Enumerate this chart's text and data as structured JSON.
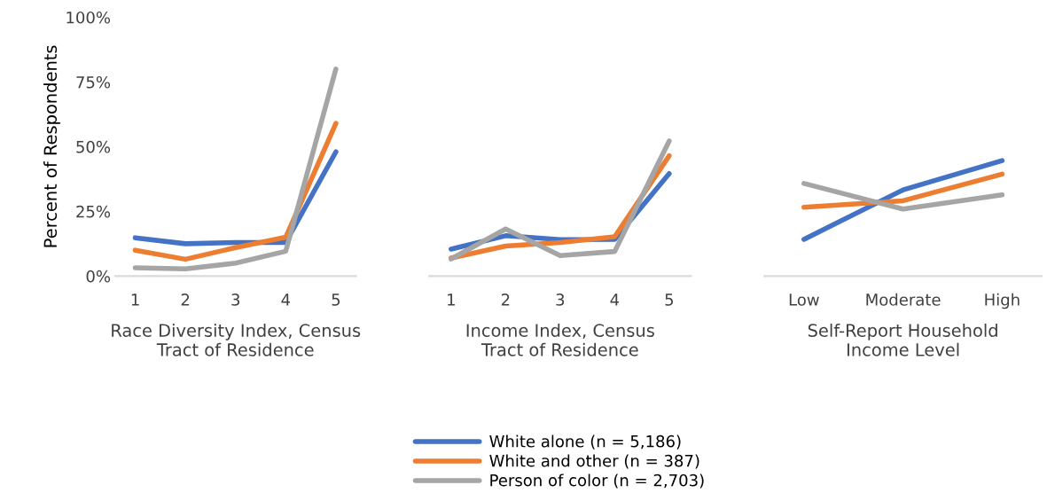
{
  "chart_data": [
    {
      "type": "line",
      "ylabel": "Percent of Respondents",
      "xlabel": "Race Diversity Index, Census\nTract of Residence",
      "categories": [
        "1",
        "2",
        "3",
        "4",
        "5"
      ],
      "ylim": [
        0,
        100
      ],
      "yticks": [
        {
          "value": 0,
          "label": "0%"
        },
        {
          "value": 25,
          "label": "25%"
        },
        {
          "value": 50,
          "label": "50%"
        },
        {
          "value": 75,
          "label": "75%"
        },
        {
          "value": 100,
          "label": "100%"
        }
      ],
      "grid": false,
      "series": [
        {
          "color": "#4472c4",
          "values": [
            14.8,
            12.5,
            13,
            13,
            48
          ]
        },
        {
          "color": "#ed7d31",
          "values": [
            10,
            6.5,
            11,
            15,
            59
          ]
        },
        {
          "color": "#a5a5a5",
          "values": [
            3.2,
            2.8,
            5,
            9.6,
            80
          ]
        }
      ]
    },
    {
      "type": "line",
      "xlabel": "Income Index, Census\nTract of Residence",
      "categories": [
        "1",
        "2",
        "3",
        "4",
        "5"
      ],
      "ylim": [
        0,
        100
      ],
      "tick_labels": "x",
      "grid": false,
      "legend": "bottom",
      "series": [
        {
          "name": "White alone (n = 5,186)",
          "color": "#4472c4",
          "values": [
            10.4,
            15.6,
            14.1,
            14.2,
            39.6
          ]
        },
        {
          "name": "White and other (n = 387)",
          "color": "#ed7d31",
          "values": [
            7,
            11.6,
            13,
            15.2,
            46.5
          ]
        },
        {
          "name": "Person of color (n = 2,703)",
          "color": "#a5a5a5",
          "values": [
            6.6,
            18.2,
            7.9,
            9.5,
            52.2
          ]
        }
      ]
    },
    {
      "type": "line",
      "xlabel": "Self-Report Household\nIncome Level",
      "categories": [
        "Low",
        "Moderate",
        "High"
      ],
      "ylim": [
        0,
        100
      ],
      "tick_labels": "x",
      "grid": false,
      "series": [
        {
          "color": "#4472c4",
          "values": [
            14.2,
            33.3,
            44.6
          ]
        },
        {
          "color": "#ed7d31",
          "values": [
            26.6,
            29.1,
            39.4
          ]
        },
        {
          "color": "#a5a5a5",
          "values": [
            35.8,
            25.9,
            31.4
          ]
        }
      ]
    }
  ]
}
